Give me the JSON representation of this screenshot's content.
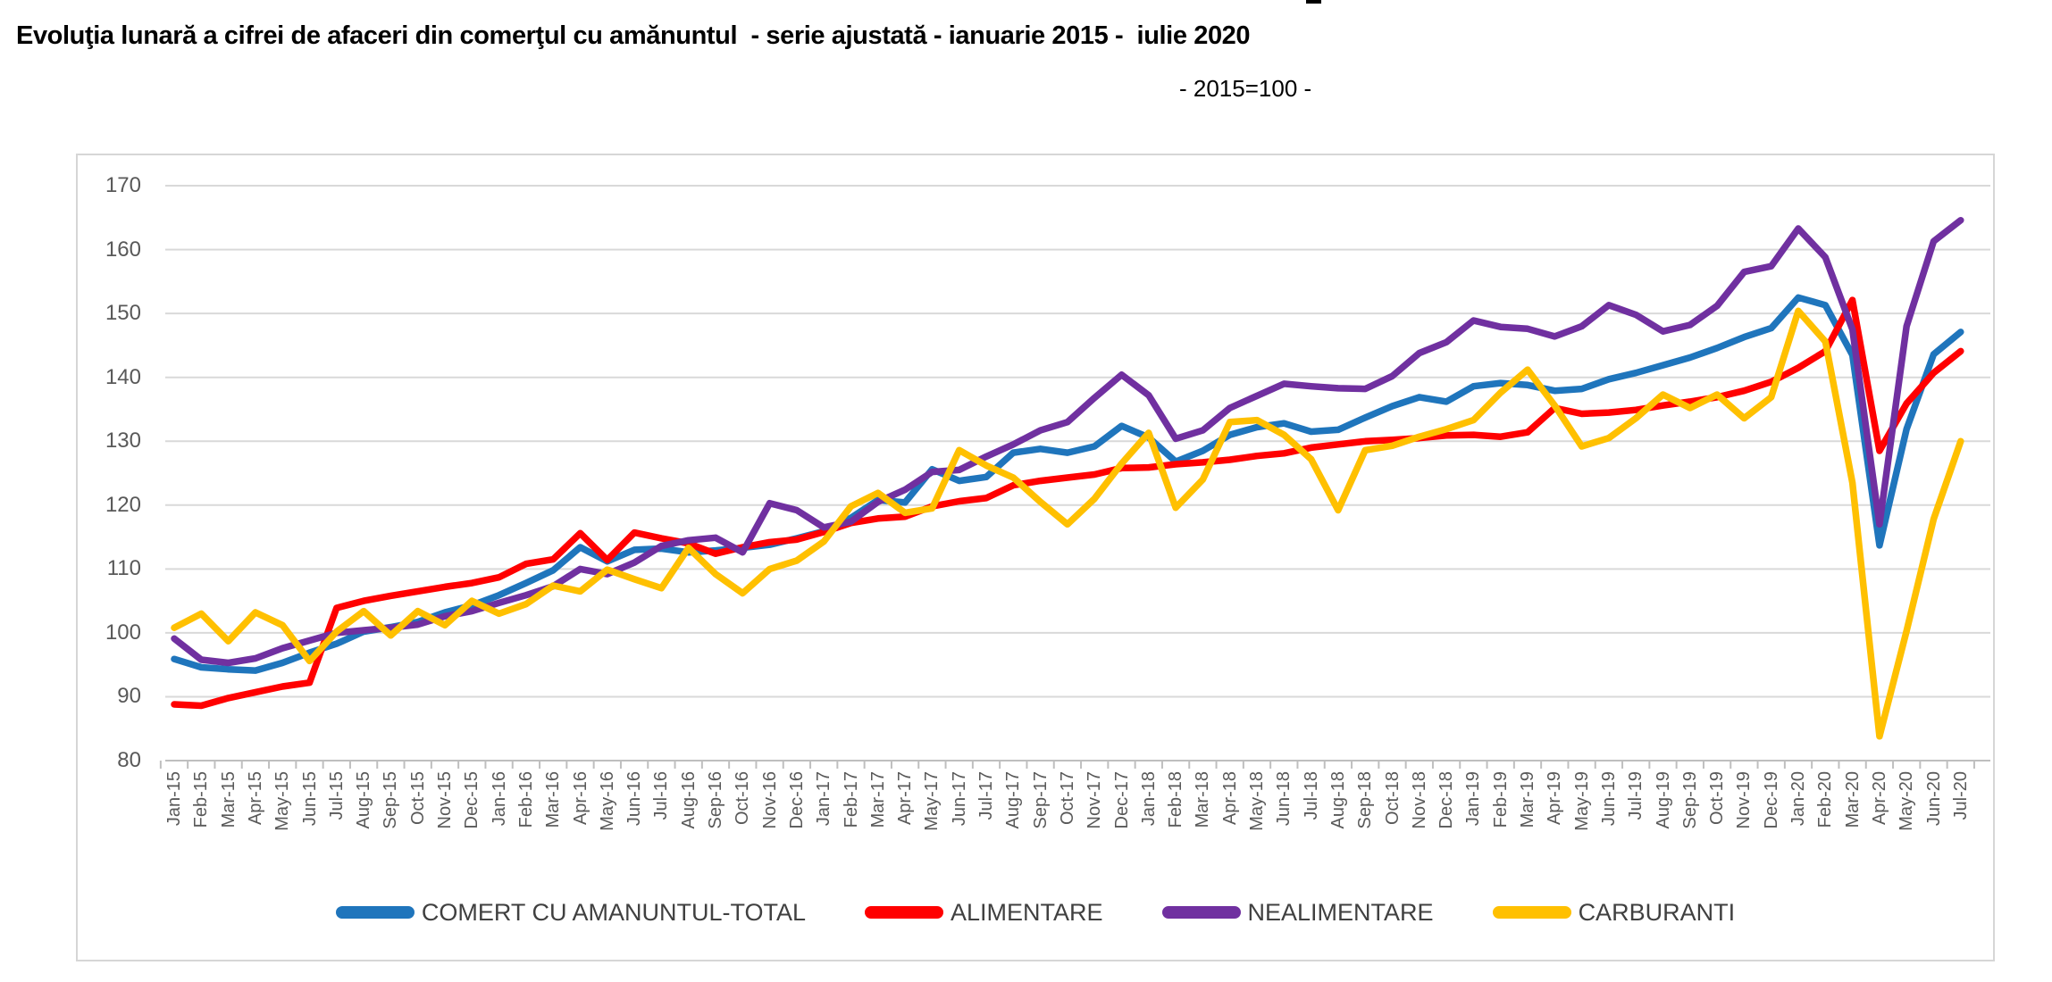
{
  "header": {
    "title": "Evoluţia lunară a cifrei de afaceri din comerţul cu amănuntul  - serie ajustată - ianuarie 2015 -  iulie 2020",
    "note": "- 2015=100 -"
  },
  "chart_data": {
    "type": "line",
    "title": "Evoluţia lunară a cifrei de afaceri din comerţul cu amănuntul - serie ajustată - ianuarie 2015 - iulie 2020",
    "subtitle": "- 2015=100 -",
    "xlabel": "",
    "ylabel": "",
    "ylim": [
      80,
      170
    ],
    "yticks": [
      80,
      90,
      100,
      110,
      120,
      130,
      140,
      150,
      160,
      170
    ],
    "grid": true,
    "legend_position": "bottom",
    "grid_color": "#d9d9d9",
    "axis_color": "#bfbfbf",
    "tick_label_color": "#595959",
    "categories": [
      "Jan-15",
      "Feb-15",
      "Mar-15",
      "Apr-15",
      "May-15",
      "Jun-15",
      "Jul-15",
      "Aug-15",
      "Sep-15",
      "Oct-15",
      "Nov-15",
      "Dec-15",
      "Jan-16",
      "Feb-16",
      "Mar-16",
      "Apr-16",
      "May-16",
      "Jun-16",
      "Jul-16",
      "Aug-16",
      "Sep-16",
      "Oct-16",
      "Nov-16",
      "Dec-16",
      "Jan-17",
      "Feb-17",
      "Mar-17",
      "Apr-17",
      "May-17",
      "Jun-17",
      "Jul-17",
      "Aug-17",
      "Sep-17",
      "Oct-17",
      "Nov-17",
      "Dec-17",
      "Jan-18",
      "Feb-18",
      "Mar-18",
      "Apr-18",
      "May-18",
      "Jun-18",
      "Jul-18",
      "Aug-18",
      "Sep-18",
      "Oct-18",
      "Nov-18",
      "Dec-18",
      "Jan-19",
      "Feb-19",
      "Mar-19",
      "Apr-19",
      "May-19",
      "Jun-19",
      "Jul-19",
      "Aug-19",
      "Sep-19",
      "Oct-19",
      "Nov-19",
      "Dec-19",
      "Jan-20",
      "Feb-20",
      "Mar-20",
      "Apr-20",
      "May-20",
      "Jun-20",
      "Jul-20"
    ],
    "series": [
      {
        "name": "COMERT CU AMANUNTUL-TOTAL",
        "color": "#1f75bc",
        "values": [
          95.9,
          94.6,
          94.3,
          94.1,
          95.3,
          96.9,
          98.3,
          100.2,
          100.9,
          101.7,
          103.2,
          104.3,
          105.9,
          107.8,
          109.8,
          113.4,
          111.2,
          113.0,
          113.2,
          112.6,
          112.9,
          113.3,
          113.8,
          114.8,
          115.9,
          118.0,
          120.8,
          120.4,
          125.6,
          123.8,
          124.4,
          128.2,
          128.8,
          128.2,
          129.2,
          132.4,
          130.6,
          126.8,
          128.5,
          131.0,
          132.2,
          132.8,
          131.5,
          131.8,
          133.7,
          135.5,
          136.9,
          136.2,
          138.6,
          139.1,
          138.8,
          137.9,
          138.2,
          139.7,
          140.7,
          141.9,
          143.1,
          144.6,
          146.3,
          147.7,
          152.5,
          151.3,
          143.5,
          113.7,
          131.9,
          143.6,
          147.1
        ]
      },
      {
        "name": "ALIMENTARE",
        "color": "#ff0000",
        "values": [
          88.8,
          88.6,
          89.8,
          90.7,
          91.6,
          92.2,
          103.9,
          105.0,
          105.8,
          106.5,
          107.2,
          107.8,
          108.7,
          110.8,
          111.5,
          115.6,
          111.4,
          115.7,
          114.8,
          114.0,
          112.4,
          113.4,
          114.2,
          114.6,
          115.8,
          117.2,
          117.9,
          118.2,
          119.8,
          120.6,
          121.1,
          123.1,
          123.8,
          124.3,
          124.8,
          125.8,
          125.9,
          126.4,
          126.7,
          127.1,
          127.7,
          128.1,
          129.0,
          129.5,
          130.0,
          130.2,
          130.5,
          130.9,
          131.0,
          130.7,
          131.4,
          135.2,
          134.3,
          134.5,
          134.9,
          135.6,
          136.2,
          136.9,
          137.9,
          139.3,
          141.5,
          144.1,
          152.1,
          128.5,
          135.9,
          140.7,
          144.1
        ]
      },
      {
        "name": "NEALIMENTARE",
        "color": "#7030a0",
        "values": [
          99.1,
          95.8,
          95.3,
          96.0,
          97.6,
          98.8,
          100.0,
          100.4,
          100.8,
          101.3,
          102.6,
          103.4,
          104.7,
          105.9,
          107.3,
          110.0,
          109.2,
          111.0,
          113.6,
          114.5,
          114.9,
          112.6,
          120.3,
          119.2,
          116.5,
          117.4,
          120.5,
          122.4,
          125.2,
          125.5,
          127.6,
          129.5,
          131.7,
          133.0,
          136.8,
          140.4,
          137.2,
          130.4,
          131.7,
          135.2,
          137.1,
          139.0,
          138.6,
          138.3,
          138.2,
          140.2,
          143.8,
          145.5,
          148.9,
          147.9,
          147.6,
          146.4,
          148.0,
          151.3,
          149.8,
          147.2,
          148.2,
          151.2,
          156.5,
          157.4,
          163.3,
          158.8,
          147.5,
          117.0,
          148.0,
          161.3,
          164.6
        ]
      },
      {
        "name": "CARBURANTI",
        "color": "#ffc000",
        "values": [
          100.8,
          103.0,
          98.7,
          103.2,
          101.2,
          95.6,
          100.2,
          103.4,
          99.6,
          103.4,
          101.2,
          105.0,
          103.0,
          104.5,
          107.4,
          106.5,
          109.9,
          108.4,
          107.0,
          113.3,
          109.2,
          106.2,
          110.0,
          111.3,
          114.3,
          119.8,
          121.9,
          118.8,
          119.5,
          128.6,
          126.2,
          124.3,
          120.5,
          117.0,
          121.0,
          126.5,
          131.3,
          119.6,
          124.0,
          133.0,
          133.3,
          131.0,
          127.2,
          119.2,
          128.6,
          129.3,
          130.7,
          131.9,
          133.3,
          137.6,
          141.2,
          135.6,
          129.2,
          130.5,
          133.6,
          137.3,
          135.2,
          137.3,
          133.6,
          136.9,
          150.4,
          145.6,
          123.5,
          83.8,
          100.3,
          117.8,
          130.0
        ]
      }
    ]
  }
}
